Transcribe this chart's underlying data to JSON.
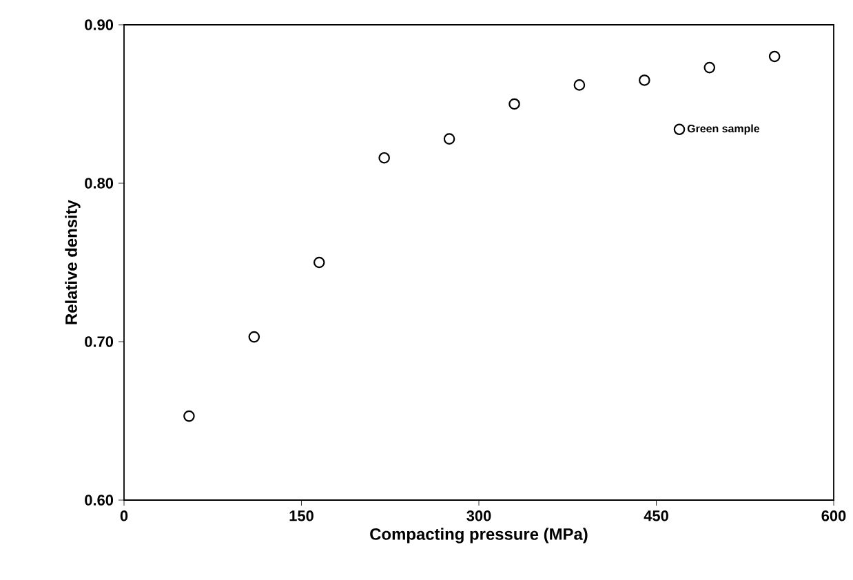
{
  "chart_data": {
    "type": "scatter",
    "xlabel": "Compacting pressure (MPa)",
    "ylabel": "Relative density",
    "series": [
      {
        "name": "Green sample",
        "color": "#000000",
        "x": [
          55,
          110,
          165,
          220,
          275,
          330,
          385,
          440,
          495,
          550
        ],
        "values": [
          0.653,
          0.703,
          0.75,
          0.816,
          0.828,
          0.85,
          0.862,
          0.865,
          0.873,
          0.88
        ]
      }
    ],
    "xlim": [
      0,
      600
    ],
    "ylim": [
      0.6,
      0.9
    ],
    "xticks": [
      0,
      150,
      300,
      450,
      600
    ],
    "yticks": [
      {
        "value": 0.6,
        "label": "0.60"
      },
      {
        "value": 0.7,
        "label": "0.70"
      },
      {
        "value": 0.8,
        "label": "0.80"
      },
      {
        "value": 0.9,
        "label": "0.90"
      }
    ],
    "marker": "circle",
    "legend": "top right",
    "grid": false
  }
}
